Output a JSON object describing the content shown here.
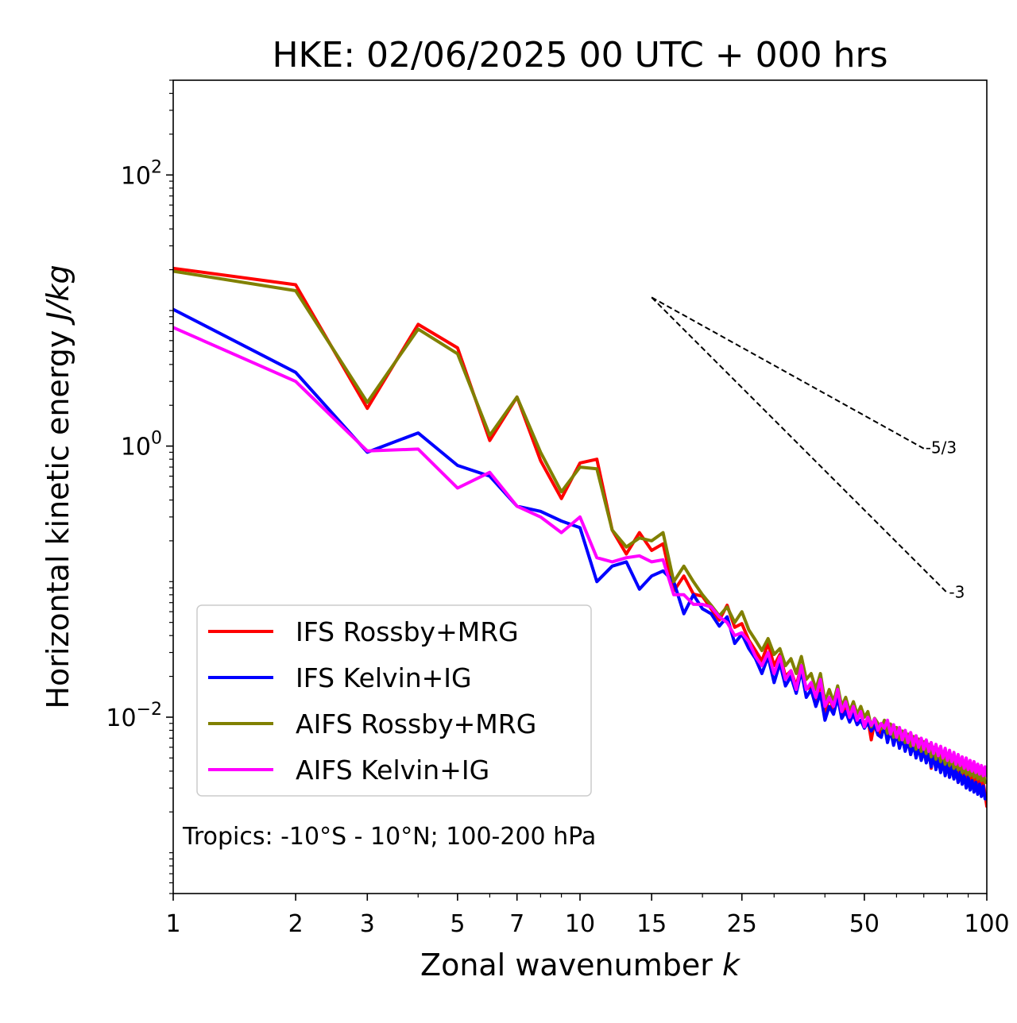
{
  "chart_data": {
    "type": "line",
    "title": "HKE: 02/06/2025 00 UTC + 000 hrs",
    "xlabel": "Zonal wavenumber",
    "xlabel_italic": "k",
    "ylabel": "Horizontal kinetic energy",
    "ylabel_italic": "J/kg",
    "xscale": "log",
    "yscale": "log",
    "xlim": [
      1,
      100
    ],
    "ylim": [
      0.0005,
      500
    ],
    "x_ticks": [
      {
        "value": 1,
        "label": "1"
      },
      {
        "value": 2,
        "label": "2"
      },
      {
        "value": 3,
        "label": "3"
      },
      {
        "value": 5,
        "label": "5"
      },
      {
        "value": 7,
        "label": "7"
      },
      {
        "value": 10,
        "label": "10"
      },
      {
        "value": 15,
        "label": "15"
      },
      {
        "value": 25,
        "label": "25"
      },
      {
        "value": 50,
        "label": "50"
      },
      {
        "value": 100,
        "label": "100"
      }
    ],
    "y_ticks": [
      {
        "value": 0.01,
        "base": "10",
        "exp": "−2"
      },
      {
        "value": 1,
        "base": "10",
        "exp": "0"
      },
      {
        "value": 100,
        "base": "10",
        "exp": "2"
      }
    ],
    "legend_position": "lower-left",
    "annotation": "Tropics: -10°S - 10°N; 100-200 hPa",
    "reference_slopes": [
      {
        "label": "-5/3",
        "exponent": -1.6667,
        "x_start": 15,
        "y_start": 12.5,
        "x_end": 70
      },
      {
        "label": "-3",
        "exponent": -3,
        "x_start": 15,
        "y_start": 12.5,
        "x_end": 80
      }
    ],
    "series": [
      {
        "name": "IFS Rossby+MRG",
        "color": "#ff0000",
        "x": [
          1,
          2,
          3,
          4,
          5,
          6,
          7,
          8,
          9,
          10,
          11,
          12,
          13,
          14,
          15,
          16,
          17,
          18,
          19,
          20,
          21,
          22,
          23,
          24,
          25,
          26,
          27,
          28,
          29,
          30,
          31,
          32,
          33,
          34,
          35,
          36,
          37,
          38,
          39,
          40,
          41,
          42,
          43,
          44,
          45,
          46,
          47,
          48,
          49,
          50,
          51,
          52,
          53,
          54,
          55,
          56,
          57,
          58,
          59,
          60,
          61,
          62,
          63,
          64,
          65,
          66,
          67,
          68,
          69,
          70,
          71,
          72,
          73,
          74,
          75,
          76,
          77,
          78,
          79,
          80,
          81,
          82,
          83,
          84,
          85,
          86,
          87,
          88,
          89,
          90,
          91,
          92,
          93,
          94,
          95,
          96,
          97,
          98,
          99,
          100
        ],
        "y": [
          20.5,
          15.5,
          1.9,
          7.9,
          5.3,
          1.1,
          2.3,
          0.78,
          0.41,
          0.75,
          0.8,
          0.24,
          0.16,
          0.23,
          0.17,
          0.19,
          0.085,
          0.11,
          0.081,
          0.078,
          0.063,
          0.052,
          0.067,
          0.046,
          0.049,
          0.037,
          0.031,
          0.026,
          0.035,
          0.024,
          0.029,
          0.02,
          0.022,
          0.017,
          0.024,
          0.016,
          0.017,
          0.013,
          0.018,
          0.011,
          0.014,
          0.0115,
          0.015,
          0.0105,
          0.012,
          0.01,
          0.0115,
          0.0098,
          0.0105,
          0.0089,
          0.0097,
          0.0068,
          0.0093,
          0.0082,
          0.0075,
          0.0091,
          0.0069,
          0.0083,
          0.0065,
          0.0078,
          0.0061,
          0.0072,
          0.0058,
          0.0069,
          0.0053,
          0.0066,
          0.0051,
          0.0062,
          0.005,
          0.0059,
          0.0047,
          0.0057,
          0.0042,
          0.0055,
          0.0044,
          0.0051,
          0.004,
          0.0049,
          0.0038,
          0.0047,
          0.0036,
          0.0045,
          0.004,
          0.0043,
          0.0033,
          0.0041,
          0.0036,
          0.0039,
          0.0031,
          0.004,
          0.0034,
          0.0037,
          0.0029,
          0.0036,
          0.0032,
          0.0034,
          0.003,
          0.0033,
          0.0027,
          0.0022
        ]
      },
      {
        "name": "IFS Kelvin+IG",
        "color": "#0000ff",
        "x": [
          1,
          2,
          3,
          4,
          5,
          6,
          7,
          8,
          9,
          10,
          11,
          12,
          13,
          14,
          15,
          16,
          17,
          18,
          19,
          20,
          21,
          22,
          23,
          24,
          25,
          26,
          27,
          28,
          29,
          30,
          31,
          32,
          33,
          34,
          35,
          36,
          37,
          38,
          39,
          40,
          41,
          42,
          43,
          44,
          45,
          46,
          47,
          48,
          49,
          50,
          51,
          52,
          53,
          54,
          55,
          56,
          57,
          58,
          59,
          60,
          61,
          62,
          63,
          64,
          65,
          66,
          67,
          68,
          69,
          70,
          71,
          72,
          73,
          74,
          75,
          76,
          77,
          78,
          79,
          80,
          81,
          82,
          83,
          84,
          85,
          86,
          87,
          88,
          89,
          90,
          91,
          92,
          93,
          94,
          95,
          96,
          97,
          98,
          99,
          100
        ],
        "y": [
          10.2,
          3.5,
          0.9,
          1.25,
          0.72,
          0.6,
          0.36,
          0.33,
          0.28,
          0.25,
          0.1,
          0.13,
          0.14,
          0.088,
          0.11,
          0.12,
          0.1,
          0.058,
          0.08,
          0.063,
          0.058,
          0.047,
          0.055,
          0.035,
          0.041,
          0.032,
          0.027,
          0.021,
          0.028,
          0.018,
          0.025,
          0.017,
          0.02,
          0.015,
          0.022,
          0.014,
          0.016,
          0.012,
          0.015,
          0.0095,
          0.012,
          0.0105,
          0.014,
          0.0098,
          0.011,
          0.0092,
          0.0105,
          0.0088,
          0.0095,
          0.0083,
          0.0091,
          0.0079,
          0.0088,
          0.0074,
          0.0071,
          0.0087,
          0.0065,
          0.008,
          0.0062,
          0.0076,
          0.0059,
          0.007,
          0.0056,
          0.0067,
          0.0053,
          0.0063,
          0.005,
          0.006,
          0.0048,
          0.0057,
          0.0046,
          0.0054,
          0.0043,
          0.0052,
          0.0041,
          0.0049,
          0.0039,
          0.0047,
          0.0037,
          0.0045,
          0.0036,
          0.0043,
          0.0035,
          0.0041,
          0.0033,
          0.0039,
          0.0032,
          0.0037,
          0.003,
          0.0036,
          0.0029,
          0.0034,
          0.0028,
          0.0033,
          0.0027,
          0.0032,
          0.0026,
          0.0031,
          0.0025,
          0.0025
        ]
      },
      {
        "name": "AIFS Rossby+MRG",
        "color": "#808000",
        "x": [
          1,
          2,
          3,
          4,
          5,
          6,
          7,
          8,
          9,
          10,
          11,
          12,
          13,
          14,
          15,
          16,
          17,
          18,
          19,
          20,
          21,
          22,
          23,
          24,
          25,
          26,
          27,
          28,
          29,
          30,
          31,
          32,
          33,
          34,
          35,
          36,
          37,
          38,
          39,
          40,
          41,
          42,
          43,
          44,
          45,
          46,
          47,
          48,
          49,
          50,
          51,
          52,
          53,
          54,
          55,
          56,
          57,
          58,
          59,
          60,
          61,
          62,
          63,
          64,
          65,
          66,
          67,
          68,
          69,
          70,
          71,
          72,
          73,
          74,
          75,
          76,
          77,
          78,
          79,
          80,
          81,
          82,
          83,
          84,
          85,
          86,
          87,
          88,
          89,
          90,
          91,
          92,
          93,
          94,
          95,
          96,
          97,
          98,
          99,
          100
        ],
        "y": [
          19.5,
          14,
          2.1,
          7.3,
          4.8,
          1.2,
          2.3,
          0.9,
          0.46,
          0.7,
          0.68,
          0.24,
          0.18,
          0.21,
          0.2,
          0.23,
          0.1,
          0.13,
          0.1,
          0.08,
          0.067,
          0.056,
          0.065,
          0.05,
          0.06,
          0.044,
          0.037,
          0.031,
          0.038,
          0.029,
          0.032,
          0.024,
          0.027,
          0.021,
          0.028,
          0.019,
          0.021,
          0.016,
          0.021,
          0.013,
          0.016,
          0.013,
          0.017,
          0.012,
          0.014,
          0.011,
          0.013,
          0.0105,
          0.012,
          0.01,
          0.011,
          0.0085,
          0.0098,
          0.009,
          0.0082,
          0.0095,
          0.0076,
          0.0089,
          0.0071,
          0.0084,
          0.0068,
          0.0079,
          0.0065,
          0.0075,
          0.0061,
          0.0072,
          0.0058,
          0.0069,
          0.0056,
          0.0066,
          0.0054,
          0.0063,
          0.0051,
          0.006,
          0.0049,
          0.0058,
          0.0047,
          0.0055,
          0.0045,
          0.0053,
          0.0044,
          0.0051,
          0.0042,
          0.0049,
          0.0041,
          0.0047,
          0.0039,
          0.0045,
          0.0038,
          0.0044,
          0.0037,
          0.0042,
          0.0036,
          0.0041,
          0.0035,
          0.004,
          0.0034,
          0.0039,
          0.0033,
          0.0033
        ]
      },
      {
        "name": "AIFS Kelvin+IG",
        "color": "#ff00ff",
        "x": [
          1,
          2,
          3,
          4,
          5,
          6,
          7,
          8,
          9,
          10,
          11,
          12,
          13,
          14,
          15,
          16,
          17,
          18,
          19,
          20,
          21,
          22,
          23,
          24,
          25,
          26,
          27,
          28,
          29,
          30,
          31,
          32,
          33,
          34,
          35,
          36,
          37,
          38,
          39,
          40,
          41,
          42,
          43,
          44,
          45,
          46,
          47,
          48,
          49,
          50,
          51,
          52,
          53,
          54,
          55,
          56,
          57,
          58,
          59,
          60,
          61,
          62,
          63,
          64,
          65,
          66,
          67,
          68,
          69,
          70,
          71,
          72,
          73,
          74,
          75,
          76,
          77,
          78,
          79,
          80,
          81,
          82,
          83,
          84,
          85,
          86,
          87,
          88,
          89,
          90,
          91,
          92,
          93,
          94,
          95,
          96,
          97,
          98,
          99,
          100
        ],
        "y": [
          7.5,
          3.0,
          0.92,
          0.95,
          0.49,
          0.64,
          0.36,
          0.3,
          0.23,
          0.3,
          0.15,
          0.14,
          0.15,
          0.155,
          0.14,
          0.145,
          0.08,
          0.08,
          0.068,
          0.068,
          0.065,
          0.055,
          0.05,
          0.04,
          0.042,
          0.036,
          0.028,
          0.024,
          0.03,
          0.021,
          0.028,
          0.019,
          0.022,
          0.016,
          0.024,
          0.016,
          0.018,
          0.014,
          0.019,
          0.012,
          0.014,
          0.012,
          0.016,
          0.011,
          0.013,
          0.01,
          0.012,
          0.0095,
          0.011,
          0.0085,
          0.01,
          0.0087,
          0.0097,
          0.008,
          0.009,
          0.0083,
          0.0095,
          0.0075,
          0.0088,
          0.0071,
          0.0084,
          0.0068,
          0.008,
          0.0065,
          0.0077,
          0.0062,
          0.0073,
          0.006,
          0.007,
          0.0058,
          0.0068,
          0.0056,
          0.0065,
          0.0054,
          0.0063,
          0.0052,
          0.0061,
          0.005,
          0.0059,
          0.0048,
          0.0057,
          0.0047,
          0.0055,
          0.0045,
          0.0053,
          0.0044,
          0.0051,
          0.0042,
          0.005,
          0.0041,
          0.0048,
          0.004,
          0.0047,
          0.0039,
          0.0045,
          0.0038,
          0.0044,
          0.0037,
          0.0043,
          0.0037
        ]
      }
    ]
  }
}
